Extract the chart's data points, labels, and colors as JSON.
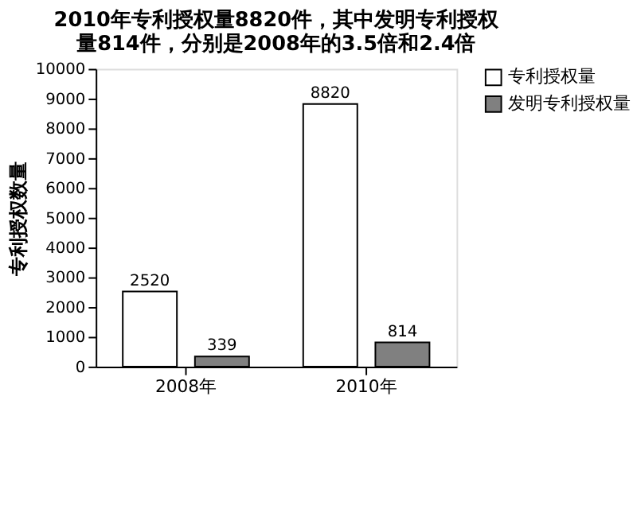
{
  "chart_data": {
    "type": "bar",
    "title": "2010年专利授权量8820件，其中发明专利授权量814件，分别是2008年的3.5倍和2.4倍",
    "ylabel": "专利授权数量",
    "categories": [
      "2008年",
      "2010年"
    ],
    "series": [
      {
        "name": "专利授权量",
        "color": "#ffffff",
        "values": [
          2520,
          8820
        ]
      },
      {
        "name": "发明专利授权量",
        "color": "#808080",
        "values": [
          339,
          814
        ]
      }
    ],
    "ylim": [
      0,
      10000
    ],
    "yticks": [
      0,
      1000,
      2000,
      3000,
      4000,
      5000,
      6000,
      7000,
      8000,
      9000,
      10000
    ],
    "data_labels": true,
    "grid": false,
    "legend": "right"
  }
}
